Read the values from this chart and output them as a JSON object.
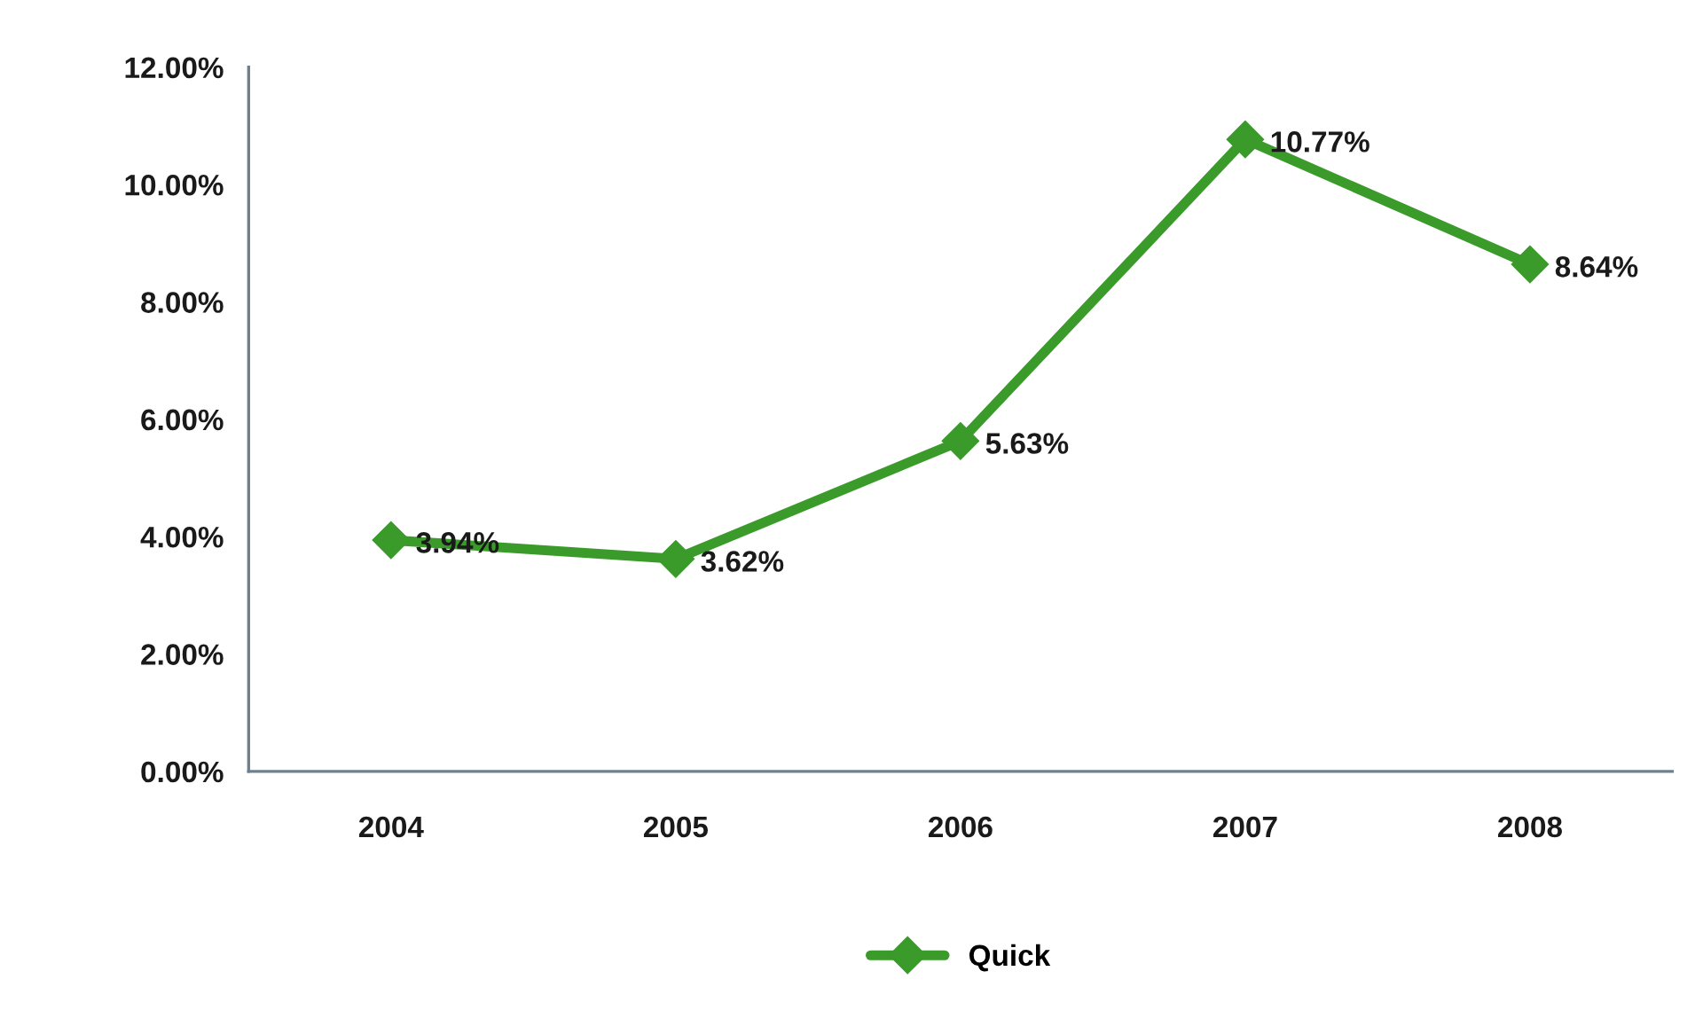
{
  "chart_data": {
    "type": "line",
    "categories": [
      "2004",
      "2005",
      "2006",
      "2007",
      "2008"
    ],
    "series": [
      {
        "name": "Quick",
        "color": "#3a9a2a",
        "values": [
          3.94,
          3.62,
          5.63,
          10.77,
          8.64
        ],
        "value_labels": [
          "3.94%",
          "3.62%",
          "5.63%",
          "10.77%",
          "8.64%"
        ]
      }
    ],
    "ylim": [
      0,
      12
    ],
    "yticks": [
      {
        "value": 0,
        "label": "0.00%"
      },
      {
        "value": 2,
        "label": "2.00%"
      },
      {
        "value": 4,
        "label": "4.00%"
      },
      {
        "value": 6,
        "label": "6.00%"
      },
      {
        "value": 8,
        "label": "8.00%"
      },
      {
        "value": 10,
        "label": "10.00%"
      },
      {
        "value": 12,
        "label": "12.00%"
      }
    ],
    "grid": false,
    "legend": "bottom",
    "marker": "diamond",
    "line_style": "solid"
  }
}
